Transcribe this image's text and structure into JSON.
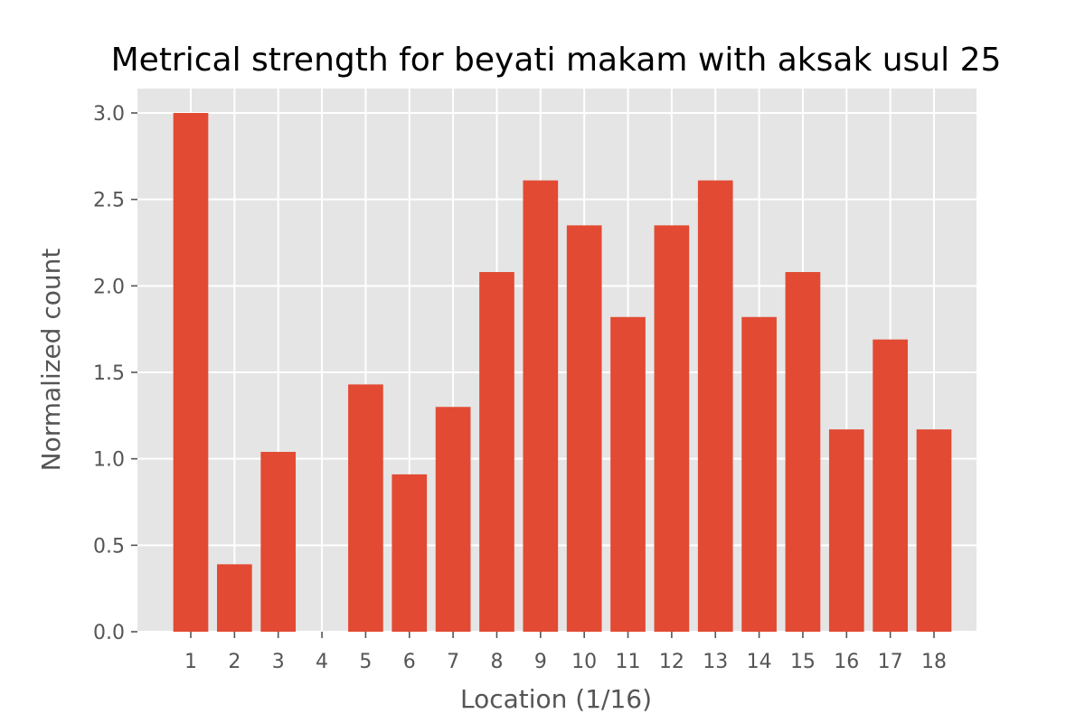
{
  "chart_data": {
    "type": "bar",
    "title": "Metrical strength for beyati makam with aksak usul 25",
    "xlabel": "Location (1/16)",
    "ylabel": "Normalized count",
    "categories": [
      "1",
      "2",
      "3",
      "4",
      "5",
      "6",
      "7",
      "8",
      "9",
      "10",
      "11",
      "12",
      "13",
      "14",
      "15",
      "16",
      "17",
      "18"
    ],
    "values": [
      3.0,
      0.39,
      1.04,
      0.0,
      1.43,
      0.91,
      1.3,
      2.08,
      2.61,
      2.35,
      1.82,
      2.35,
      2.61,
      1.82,
      2.08,
      1.17,
      1.69,
      1.17
    ],
    "ylim": [
      0,
      3.0
    ],
    "yticks": [
      0.0,
      0.5,
      1.0,
      1.5,
      2.0,
      2.5,
      3.0
    ],
    "ytick_labels": [
      "0.0",
      "0.5",
      "1.0",
      "1.5",
      "2.0",
      "2.5",
      "3.0"
    ],
    "grid": true,
    "colors": {
      "bar": "#E24A33",
      "plot_background": "#E5E5E5",
      "grid": "#FFFFFF"
    }
  }
}
